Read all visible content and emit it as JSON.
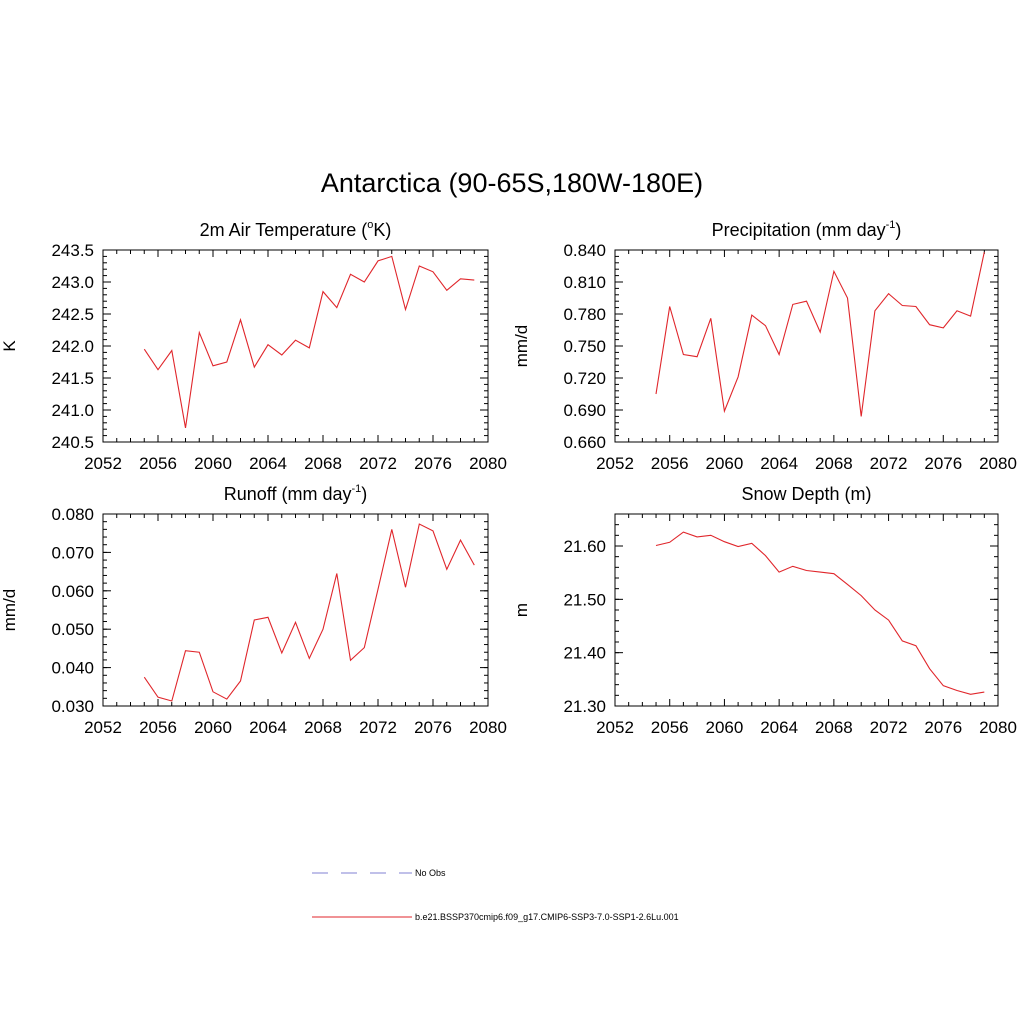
{
  "title": "Antarctica (90-65S,180W-180E)",
  "legend": [
    {
      "label": "No Obs",
      "color": "#9b9bdc",
      "dash": true
    },
    {
      "label": "b.e21.BSSP370cmip6.f09_g17.CMIP6-SSP3-7.0-SSP1-2.6Lu.001",
      "color": "#e0262b",
      "dash": false
    }
  ],
  "chart_data": [
    {
      "type": "line",
      "title": "2m Air Temperature (",
      "title_sup": "o",
      "title_tail": "K)",
      "ylabel": "K",
      "xlim": [
        2052,
        2080
      ],
      "ylim": [
        240.5,
        243.5
      ],
      "xticks": [
        2052,
        2056,
        2060,
        2064,
        2068,
        2072,
        2076,
        2080
      ],
      "yticks": [
        "240.5",
        "241.0",
        "241.5",
        "242.0",
        "242.5",
        "243.0",
        "243.5"
      ],
      "yminor": 0.1,
      "x": [
        2055,
        2056,
        2057,
        2058,
        2059,
        2060,
        2061,
        2062,
        2063,
        2064,
        2065,
        2066,
        2067,
        2068,
        2069,
        2070,
        2071,
        2072,
        2073,
        2074,
        2075,
        2076,
        2077,
        2078,
        2079
      ],
      "series": [
        {
          "values": [
            241.95,
            241.63,
            241.93,
            240.72,
            242.21,
            241.69,
            241.75,
            242.41,
            241.67,
            242.02,
            241.86,
            242.09,
            241.97,
            242.85,
            242.6,
            243.12,
            243.0,
            243.33,
            243.4,
            242.57,
            243.25,
            243.16,
            242.87,
            243.05,
            243.03
          ]
        }
      ]
    },
    {
      "type": "line",
      "title": "Precipitation (mm day",
      "title_sup": "-1",
      "title_tail": ")",
      "ylabel": "mm/d",
      "xlim": [
        2052,
        2080
      ],
      "ylim": [
        0.66,
        0.84
      ],
      "xticks": [
        2052,
        2056,
        2060,
        2064,
        2068,
        2072,
        2076,
        2080
      ],
      "yticks": [
        "0.660",
        "0.690",
        "0.720",
        "0.750",
        "0.780",
        "0.810",
        "0.840"
      ],
      "yminor": 0.006,
      "x": [
        2055,
        2056,
        2057,
        2058,
        2059,
        2060,
        2061,
        2062,
        2063,
        2064,
        2065,
        2066,
        2067,
        2068,
        2069,
        2070,
        2071,
        2072,
        2073,
        2074,
        2075,
        2076,
        2077,
        2078,
        2079
      ],
      "series": [
        {
          "values": [
            0.705,
            0.787,
            0.742,
            0.74,
            0.776,
            0.689,
            0.721,
            0.779,
            0.769,
            0.742,
            0.789,
            0.792,
            0.763,
            0.82,
            0.795,
            0.684,
            0.783,
            0.799,
            0.788,
            0.787,
            0.77,
            0.767,
            0.783,
            0.778,
            0.838
          ]
        }
      ]
    },
    {
      "type": "line",
      "title": "Runoff (mm day",
      "title_sup": "-1",
      "title_tail": ")",
      "ylabel": "mm/d",
      "xlim": [
        2052,
        2080
      ],
      "ylim": [
        0.03,
        0.08
      ],
      "xticks": [
        2052,
        2056,
        2060,
        2064,
        2068,
        2072,
        2076,
        2080
      ],
      "yticks": [
        "0.030",
        "0.040",
        "0.050",
        "0.060",
        "0.070",
        "0.080"
      ],
      "yminor": 0.002,
      "x": [
        2055,
        2056,
        2057,
        2058,
        2059,
        2060,
        2061,
        2062,
        2063,
        2064,
        2065,
        2066,
        2067,
        2068,
        2069,
        2070,
        2071,
        2072,
        2073,
        2074,
        2075,
        2076,
        2077,
        2078,
        2079
      ],
      "series": [
        {
          "values": [
            0.0375,
            0.0323,
            0.0313,
            0.0444,
            0.044,
            0.0337,
            0.0318,
            0.0365,
            0.0524,
            0.0531,
            0.0438,
            0.0518,
            0.0424,
            0.05,
            0.0645,
            0.0419,
            0.0452,
            0.0604,
            0.076,
            0.0609,
            0.0774,
            0.0756,
            0.0656,
            0.0732,
            0.0667
          ]
        }
      ]
    },
    {
      "type": "line",
      "title": "Snow Depth (m)",
      "title_sup": "",
      "title_tail": "",
      "ylabel": "m",
      "xlim": [
        2052,
        2080
      ],
      "ylim": [
        21.3,
        21.66
      ],
      "xticks": [
        2052,
        2056,
        2060,
        2064,
        2068,
        2072,
        2076,
        2080
      ],
      "yticks": [
        "21.30",
        "21.40",
        "21.50",
        "21.60"
      ],
      "yminor": 0.02,
      "x": [
        2055,
        2056,
        2057,
        2058,
        2059,
        2060,
        2061,
        2062,
        2063,
        2064,
        2065,
        2066,
        2067,
        2068,
        2069,
        2070,
        2071,
        2072,
        2073,
        2074,
        2075,
        2076,
        2077,
        2078,
        2079
      ],
      "series": [
        {
          "values": [
            21.601,
            21.607,
            21.626,
            21.617,
            21.62,
            21.608,
            21.599,
            21.605,
            21.582,
            21.551,
            21.562,
            21.554,
            21.551,
            21.548,
            21.528,
            21.507,
            21.48,
            21.461,
            21.422,
            21.413,
            21.37,
            21.338,
            21.329,
            21.322,
            21.326
          ]
        }
      ]
    }
  ]
}
